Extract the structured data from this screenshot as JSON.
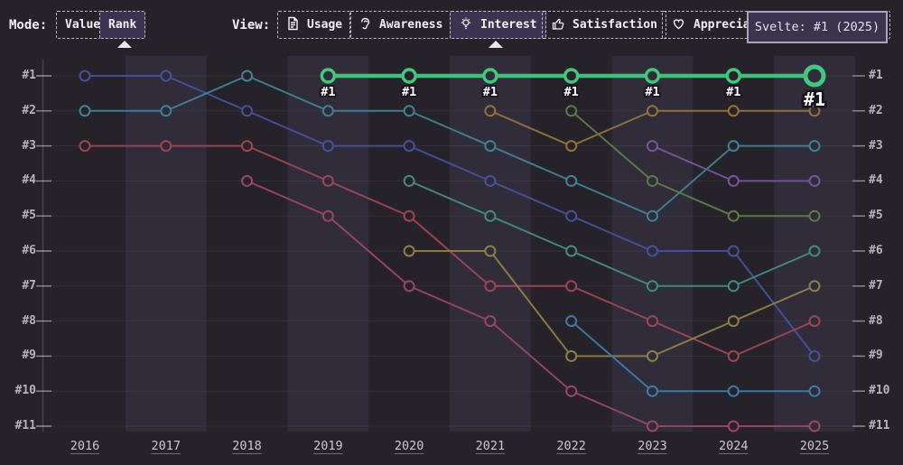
{
  "toolbar": {
    "mode_label": "Mode:",
    "modes": [
      {
        "label": "Value",
        "selected": false
      },
      {
        "label": "Rank",
        "selected": true
      }
    ],
    "view_label": "View:",
    "views": [
      {
        "label": "Usage",
        "icon": "document-icon",
        "selected": false
      },
      {
        "label": "Awareness",
        "icon": "ear-icon",
        "selected": false
      },
      {
        "label": "Interest",
        "icon": "lightbulb-icon",
        "selected": true
      },
      {
        "label": "Satisfaction",
        "icon": "thumbs-up-icon",
        "selected": false
      },
      {
        "label": "Appreciation",
        "icon": "heart-icon",
        "selected": false
      }
    ]
  },
  "tooltip": {
    "text": "Svelte: #1 (2025)"
  },
  "chart_data": {
    "type": "line",
    "subtype": "bump-rank",
    "x_labels": [
      "2016",
      "2017",
      "2018",
      "2019",
      "2020",
      "2021",
      "2022",
      "2023",
      "2024",
      "2025"
    ],
    "y_labels": [
      "#1",
      "#2",
      "#3",
      "#4",
      "#5",
      "#6",
      "#7",
      "#8",
      "#9",
      "#10",
      "#11"
    ],
    "ylim": [
      1,
      11
    ],
    "grid": true,
    "legend": "none",
    "series": [
      {
        "name": "blue",
        "color": "#45519b",
        "ranks": [
          1,
          1,
          2,
          3,
          3,
          4,
          5,
          6,
          6,
          9
        ]
      },
      {
        "name": "teal",
        "color": "#3e8294",
        "ranks": [
          2,
          2,
          1,
          2,
          2,
          3,
          4,
          5,
          3,
          3
        ]
      },
      {
        "name": "red",
        "color": "#9e4455",
        "ranks": [
          3,
          3,
          3,
          4,
          5,
          7,
          7,
          8,
          9,
          8
        ]
      },
      {
        "name": "maroon",
        "color": "#9b4566",
        "ranks": [
          null,
          null,
          4,
          5,
          7,
          8,
          10,
          11,
          11,
          11
        ]
      },
      {
        "name": "seagreen",
        "color": "#3f8d80",
        "ranks": [
          null,
          null,
          null,
          null,
          4,
          5,
          6,
          7,
          7,
          6
        ]
      },
      {
        "name": "olive",
        "color": "#8d7f45",
        "ranks": [
          null,
          null,
          null,
          null,
          6,
          6,
          9,
          9,
          8,
          7
        ]
      },
      {
        "name": "gold",
        "color": "#94713c",
        "ranks": [
          null,
          null,
          null,
          null,
          null,
          2,
          3,
          2,
          2,
          2
        ]
      },
      {
        "name": "green",
        "color": "#5d7c45",
        "ranks": [
          null,
          null,
          null,
          null,
          null,
          null,
          2,
          4,
          5,
          5
        ]
      },
      {
        "name": "cyan",
        "color": "#3f7aa9",
        "ranks": [
          null,
          null,
          null,
          null,
          null,
          null,
          8,
          10,
          10,
          10
        ]
      },
      {
        "name": "purple",
        "color": "#75559b",
        "ranks": [
          null,
          null,
          null,
          null,
          null,
          null,
          null,
          3,
          4,
          4
        ]
      }
    ],
    "highlight": {
      "name": "Svelte",
      "color": "#3fca7d",
      "ranks": [
        null,
        null,
        null,
        1,
        1,
        1,
        1,
        1,
        1,
        1
      ],
      "point_label": "#1"
    }
  }
}
